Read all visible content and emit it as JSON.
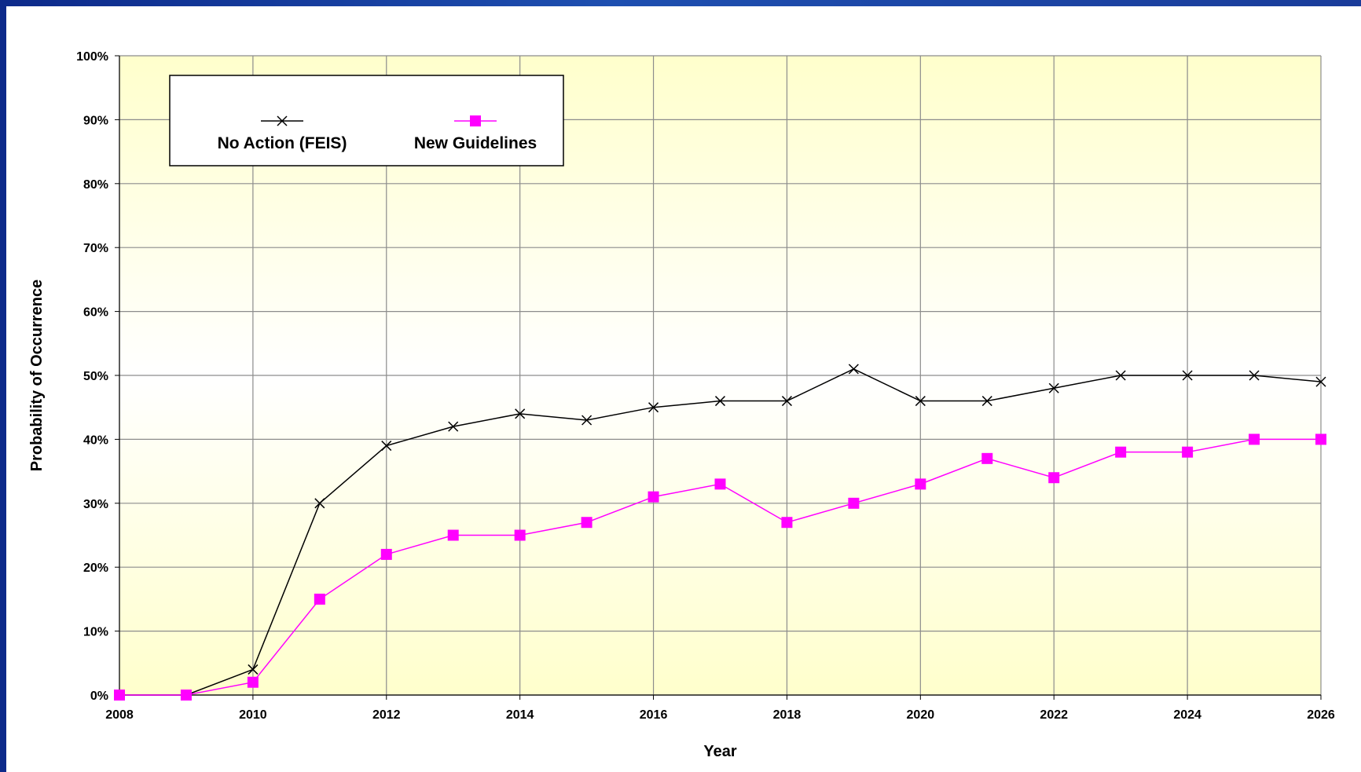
{
  "chart_data": {
    "type": "line",
    "title": "",
    "xlabel": "Year",
    "ylabel": "Probability of Occurrence",
    "xlim": [
      2008,
      2026
    ],
    "ylim": [
      0,
      100
    ],
    "x_ticks": [
      2008,
      2010,
      2012,
      2014,
      2016,
      2018,
      2020,
      2022,
      2024,
      2026
    ],
    "y_ticks": [
      0,
      10,
      20,
      30,
      40,
      50,
      60,
      70,
      80,
      90,
      100
    ],
    "y_tick_format": "percent",
    "grid": true,
    "legend_position": "top-left",
    "plot_background": [
      "#ffffcc",
      "#ffffff"
    ],
    "x": [
      2008,
      2009,
      2010,
      2011,
      2012,
      2013,
      2014,
      2015,
      2016,
      2017,
      2018,
      2019,
      2020,
      2021,
      2022,
      2023,
      2024,
      2025,
      2026
    ],
    "series": [
      {
        "name": "No Action (FEIS)",
        "color": "#000000",
        "marker": "x",
        "values": [
          0,
          0,
          4,
          30,
          39,
          42,
          44,
          43,
          45,
          46,
          46,
          51,
          46,
          46,
          48,
          50,
          50,
          50,
          49
        ]
      },
      {
        "name": "New Guidelines",
        "color": "#ff00ff",
        "marker": "square",
        "values": [
          0,
          0,
          2,
          15,
          22,
          25,
          25,
          27,
          31,
          33,
          27,
          30,
          33,
          37,
          34,
          38,
          38,
          40,
          40
        ]
      }
    ]
  }
}
